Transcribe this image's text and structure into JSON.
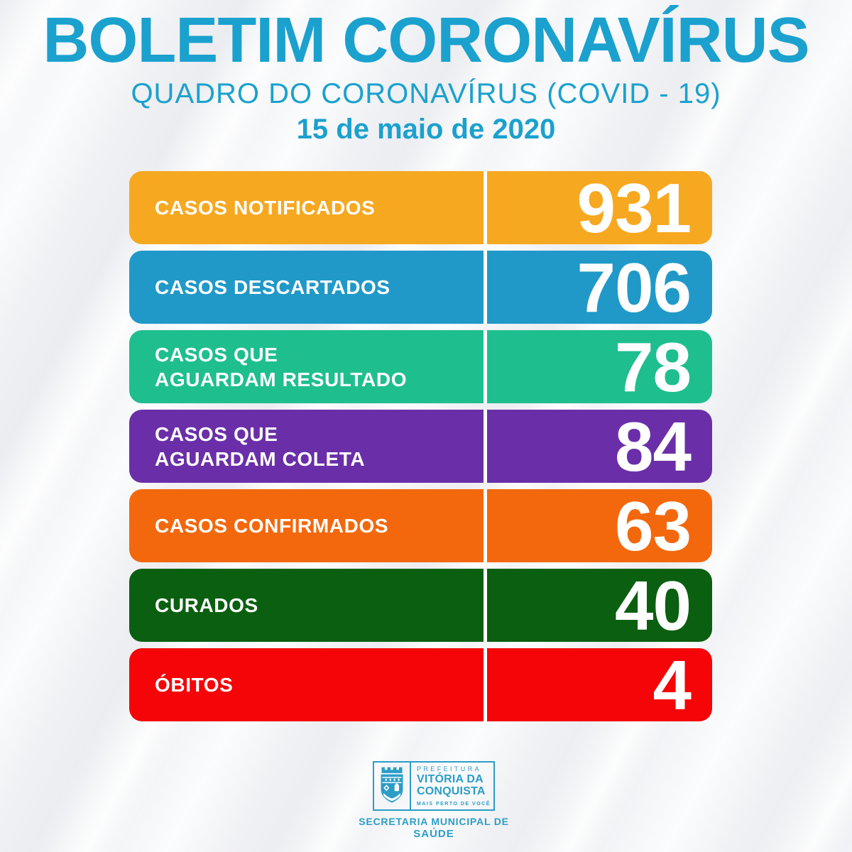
{
  "header": {
    "title": "BOLETIM CORONAVÍRUS",
    "subtitle": "QUADRO DO CORONAVÍRUS (COVID - 19)",
    "date": "15 de maio de 2020"
  },
  "colors": {
    "accent": "#1BA1CE",
    "logo_blue": "#2B9DC7"
  },
  "rows": [
    {
      "label_lines": [
        "CASOS NOTIFICADOS"
      ],
      "value": "931",
      "color": "#F7A821"
    },
    {
      "label_lines": [
        "CASOS DESCARTADOS"
      ],
      "value": "706",
      "color": "#2099C8"
    },
    {
      "label_lines": [
        "CASOS QUE",
        "AGUARDAM RESULTADO"
      ],
      "value": "78",
      "color": "#1FBE8F"
    },
    {
      "label_lines": [
        "CASOS QUE",
        "AGUARDAM COLETA"
      ],
      "value": "84",
      "color": "#6A2FA8"
    },
    {
      "label_lines": [
        "CASOS CONFIRMADOS"
      ],
      "value": "63",
      "color": "#F3680D"
    },
    {
      "label_lines": [
        "CURADOS"
      ],
      "value": "40",
      "color": "#0B5F10"
    },
    {
      "label_lines": [
        "ÓBITOS"
      ],
      "value": "4",
      "color": "#F50408"
    }
  ],
  "chart_data": {
    "type": "table",
    "title": "BOLETIM CORONAVÍRUS",
    "subtitle": "QUADRO DO CORONAVÍRUS (COVID - 19)",
    "date": "15 de maio de 2020",
    "categories": [
      "CASOS NOTIFICADOS",
      "CASOS DESCARTADOS",
      "CASOS QUE AGUARDAM RESULTADO",
      "CASOS QUE AGUARDAM COLETA",
      "CASOS CONFIRMADOS",
      "CURADOS",
      "ÓBITOS"
    ],
    "values": [
      931,
      706,
      78,
      84,
      63,
      40,
      4
    ]
  },
  "footer": {
    "logo": {
      "pretitle": "PREFEITURA",
      "name_line1": "VITÓRIA DA",
      "name_line2": "CONQUISTA",
      "tagline": "MAIS PERTO DE VOCÊ"
    },
    "org_line1": "SECRETARIA MUNICIPAL DE",
    "org_line2": "SAÚDE"
  }
}
